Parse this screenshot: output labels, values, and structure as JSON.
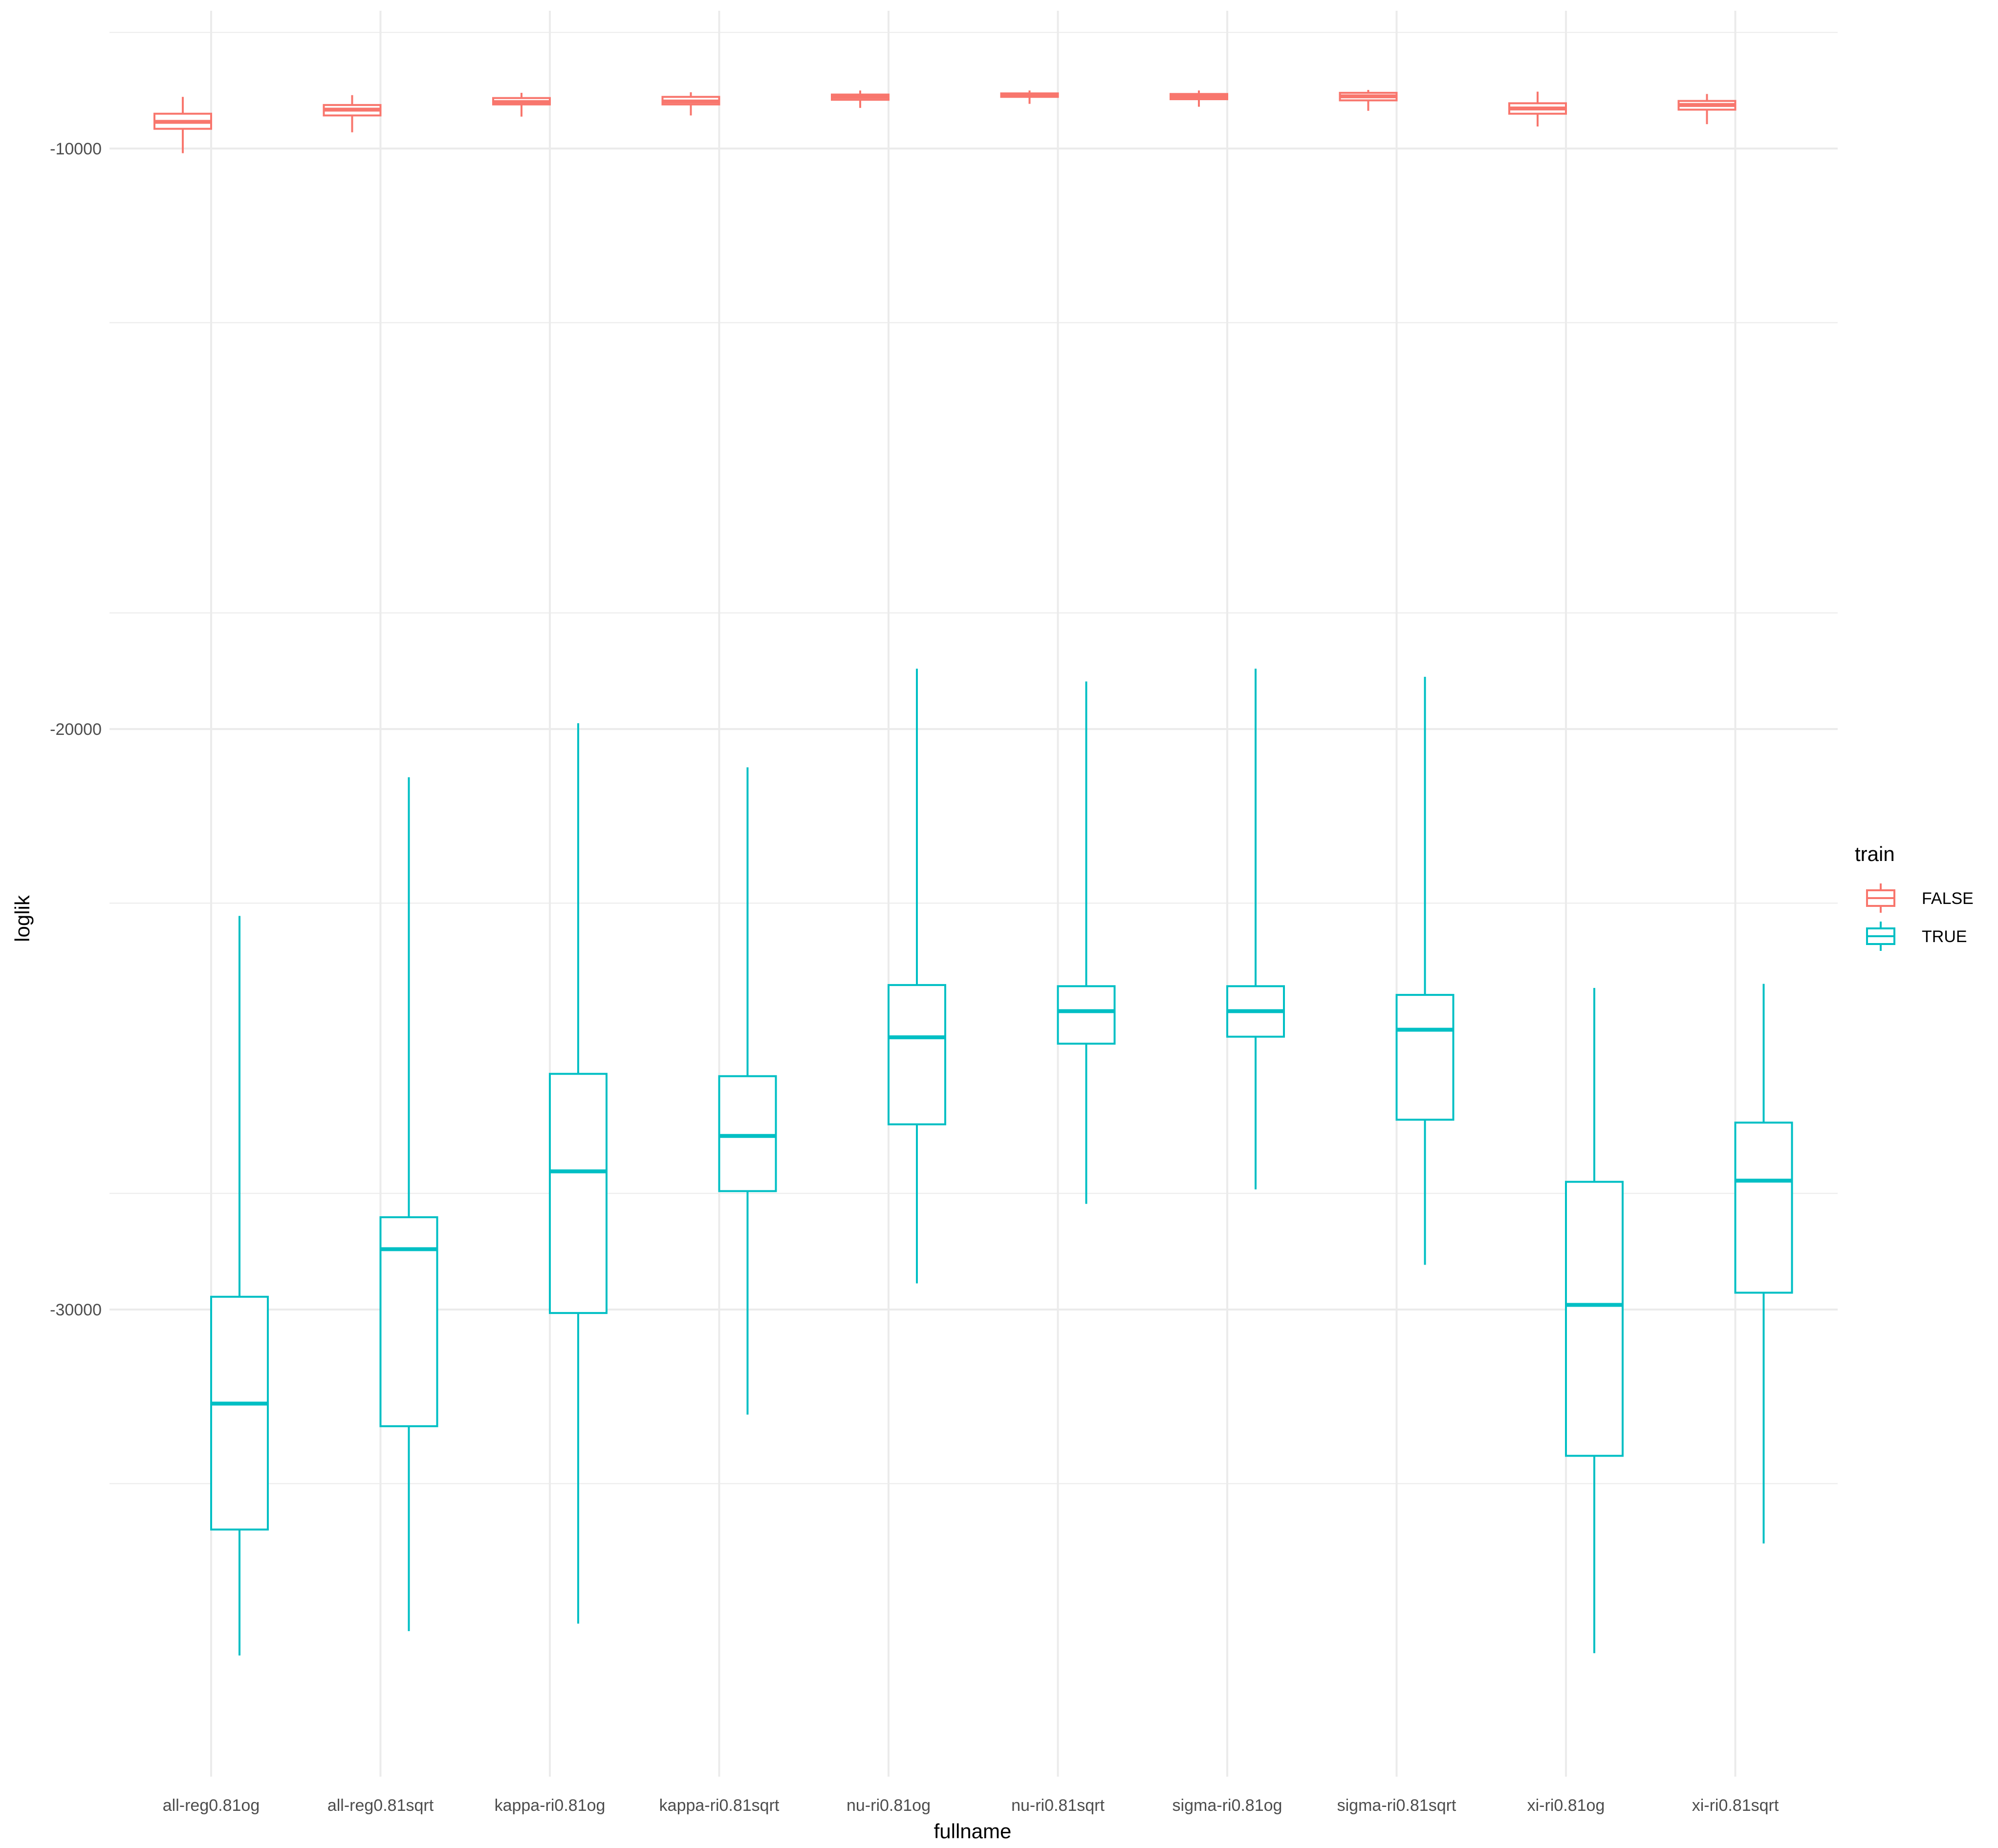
{
  "chart_data": {
    "type": "boxplot",
    "xlabel": "fullname",
    "ylabel": "loglik",
    "categories": [
      "all-reg0.81og",
      "all-reg0.81sqrt",
      "kappa-ri0.81og",
      "kappa-ri0.81sqrt",
      "nu-ri0.81og",
      "nu-ri0.81sqrt",
      "sigma-ri0.81og",
      "sigma-ri0.81sqrt",
      "xi-ri0.81og",
      "xi-ri0.81sqrt"
    ],
    "y_ticks": [
      -10000,
      -20000,
      -30000
    ],
    "y_tick_labels": [
      "-10000",
      "-20000",
      "-30000"
    ],
    "ylim": [
      -36000,
      -8000
    ],
    "grid": true,
    "legend": {
      "title": "train",
      "placement": "right",
      "entries": [
        {
          "label": "FALSE",
          "color": "#F8766D"
        },
        {
          "label": "TRUE",
          "color": "#00BFC4"
        }
      ]
    },
    "series": [
      {
        "name": "FALSE",
        "color": "#F8766D",
        "boxes": [
          {
            "min": -10080,
            "q1": -9660,
            "median": -9540,
            "q3": -9400,
            "max": -9110
          },
          {
            "min": -9720,
            "q1": -9430,
            "median": -9330,
            "q3": -9250,
            "max": -9080
          },
          {
            "min": -9450,
            "q1": -9240,
            "median": -9200,
            "q3": -9130,
            "max": -9040
          },
          {
            "min": -9430,
            "q1": -9240,
            "median": -9190,
            "q3": -9110,
            "max": -9030
          },
          {
            "min": -9300,
            "q1": -9160,
            "median": -9110,
            "q3": -9070,
            "max": -9000
          },
          {
            "min": -9230,
            "q1": -9110,
            "median": -9080,
            "q3": -9050,
            "max": -9000
          },
          {
            "min": -9280,
            "q1": -9150,
            "median": -9100,
            "q3": -9060,
            "max": -9000
          },
          {
            "min": -9350,
            "q1": -9170,
            "median": -9100,
            "q3": -9040,
            "max": -8990
          },
          {
            "min": -9620,
            "q1": -9400,
            "median": -9310,
            "q3": -9220,
            "max": -9020
          },
          {
            "min": -9580,
            "q1": -9330,
            "median": -9250,
            "q3": -9180,
            "max": -9060
          }
        ]
      },
      {
        "name": "TRUE",
        "color": "#00BFC4",
        "boxes": [
          {
            "min": -35960,
            "q1": -33790,
            "median": -31620,
            "q3": -29780,
            "max": -23220
          },
          {
            "min": -35540,
            "q1": -32010,
            "median": -28960,
            "q3": -28410,
            "max": -20830
          },
          {
            "min": -35410,
            "q1": -30060,
            "median": -27620,
            "q3": -25940,
            "max": -19900
          },
          {
            "min": -31810,
            "q1": -27960,
            "median": -27010,
            "q3": -25980,
            "max": -20660
          },
          {
            "min": -29550,
            "q1": -26810,
            "median": -25310,
            "q3": -24410,
            "max": -18960
          },
          {
            "min": -28180,
            "q1": -25420,
            "median": -24860,
            "q3": -24430,
            "max": -19180
          },
          {
            "min": -27930,
            "q1": -25300,
            "median": -24860,
            "q3": -24430,
            "max": -18960
          },
          {
            "min": -29230,
            "q1": -26730,
            "median": -25180,
            "q3": -24580,
            "max": -19100
          },
          {
            "min": -35920,
            "q1": -32520,
            "median": -29920,
            "q3": -27800,
            "max": -24460
          },
          {
            "min": -34030,
            "q1": -29710,
            "median": -27780,
            "q3": -26780,
            "max": -24390
          }
        ]
      }
    ]
  }
}
